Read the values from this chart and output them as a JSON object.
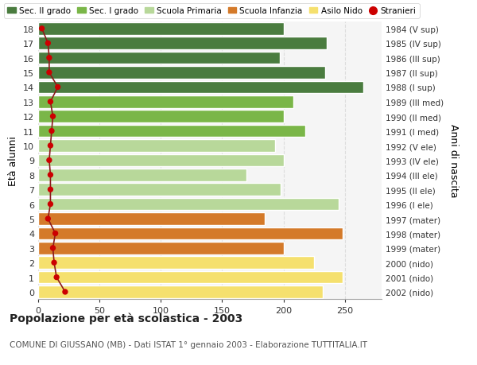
{
  "ages": [
    18,
    17,
    16,
    15,
    14,
    13,
    12,
    11,
    10,
    9,
    8,
    7,
    6,
    5,
    4,
    3,
    2,
    1,
    0
  ],
  "bar_values": [
    200,
    235,
    197,
    234,
    265,
    208,
    200,
    218,
    193,
    200,
    170,
    198,
    245,
    185,
    248,
    200,
    225,
    248,
    232
  ],
  "bar_colors": [
    "#4a7c3f",
    "#4a7c3f",
    "#4a7c3f",
    "#4a7c3f",
    "#4a7c3f",
    "#7ab648",
    "#7ab648",
    "#7ab648",
    "#b8d89a",
    "#b8d89a",
    "#b8d89a",
    "#b8d89a",
    "#b8d89a",
    "#d47a2a",
    "#d47a2a",
    "#d47a2a",
    "#f5e06e",
    "#f5e06e",
    "#f5e06e"
  ],
  "stranieri_values": [
    3,
    8,
    9,
    9,
    16,
    10,
    12,
    11,
    10,
    9,
    10,
    10,
    10,
    8,
    14,
    12,
    13,
    15,
    22
  ],
  "right_labels": [
    "1984 (V sup)",
    "1985 (IV sup)",
    "1986 (III sup)",
    "1987 (II sup)",
    "1988 (I sup)",
    "1989 (III med)",
    "1990 (II med)",
    "1991 (I med)",
    "1992 (V ele)",
    "1993 (IV ele)",
    "1994 (III ele)",
    "1995 (II ele)",
    "1996 (I ele)",
    "1997 (mater)",
    "1998 (mater)",
    "1999 (mater)",
    "2000 (nido)",
    "2001 (nido)",
    "2002 (nido)"
  ],
  "legend_labels": [
    "Sec. II grado",
    "Sec. I grado",
    "Scuola Primaria",
    "Scuola Infanzia",
    "Asilo Nido",
    "Stranieri"
  ],
  "legend_colors": [
    "#4a7c3f",
    "#7ab648",
    "#b8d89a",
    "#d47a2a",
    "#f5e06e",
    "#cc0000"
  ],
  "ylabel_left": "Età alunni",
  "ylabel_right": "Anni di nascita",
  "title": "Popolazione per età scolastica - 2003",
  "subtitle": "COMUNE DI GIUSSANO (MB) - Dati ISTAT 1° gennaio 2003 - Elaborazione TUTTITALIA.IT",
  "xlim": [
    0,
    280
  ],
  "xticks": [
    0,
    50,
    100,
    150,
    200,
    250
  ],
  "background_color": "#ffffff",
  "plot_bg_color": "#f5f5f5",
  "stranieri_line_color": "#8b1a1a",
  "stranieri_dot_color": "#cc0000",
  "grid_color": "#dddddd"
}
